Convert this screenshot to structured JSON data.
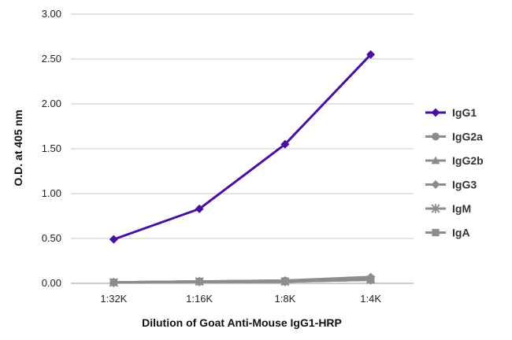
{
  "chart_data": {
    "type": "line",
    "title": "",
    "xlabel": "Dilution of Goat Anti-Mouse IgG1-HRP",
    "ylabel": "O.D. at 405 nm",
    "categories": [
      "1:32K",
      "1:16K",
      "1:8K",
      "1:4K"
    ],
    "ylim": [
      0,
      3
    ],
    "yticks": [
      "0.00",
      "0.50",
      "1.00",
      "1.50",
      "2.00",
      "2.50",
      "3.00"
    ],
    "grid": "horizontal",
    "legend_position": "right",
    "series": [
      {
        "name": "IgG1",
        "values": [
          0.49,
          0.83,
          1.55,
          2.55
        ],
        "color": "#4b0ea3",
        "marker": "diamond"
      },
      {
        "name": "IgG2a",
        "values": [
          0.01,
          0.02,
          0.03,
          0.05
        ],
        "color": "#8c8c8c",
        "marker": "circle"
      },
      {
        "name": "IgG2b",
        "values": [
          0.01,
          0.02,
          0.02,
          0.05
        ],
        "color": "#8c8c8c",
        "marker": "triangle"
      },
      {
        "name": "IgG3",
        "values": [
          0.01,
          0.02,
          0.03,
          0.07
        ],
        "color": "#8c8c8c",
        "marker": "diamond"
      },
      {
        "name": "IgM",
        "values": [
          0.01,
          0.02,
          0.02,
          0.04
        ],
        "color": "#8c8c8c",
        "marker": "star"
      },
      {
        "name": "IgA",
        "values": [
          0.01,
          0.02,
          0.02,
          0.04
        ],
        "color": "#8c8c8c",
        "marker": "square"
      }
    ]
  }
}
